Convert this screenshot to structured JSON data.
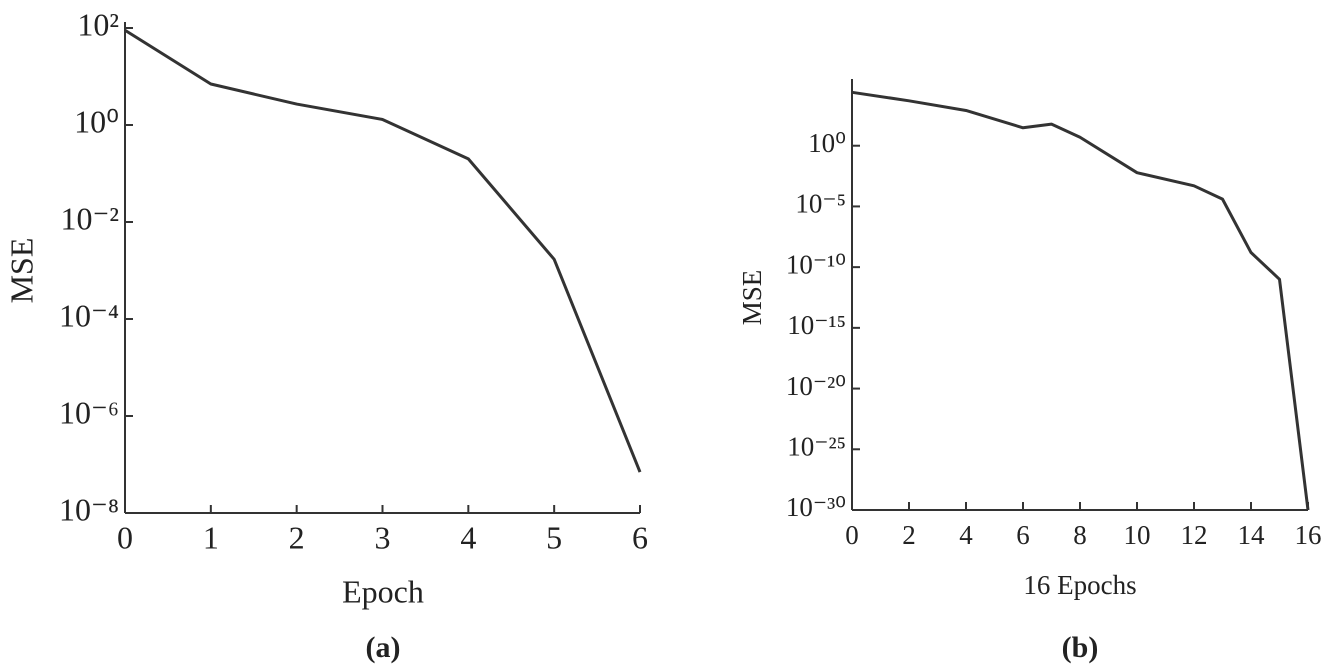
{
  "chart_data": [
    {
      "type": "line",
      "caption": "(a)",
      "xlabel": "Epoch",
      "ylabel": "MSE",
      "x": [
        0,
        1,
        2,
        3,
        4,
        5,
        6
      ],
      "values": [
        90,
        7,
        2.7,
        1.3,
        0.2,
        0.0017,
        7e-08
      ],
      "color": "#333333",
      "log_y": true,
      "xlim": [
        0,
        6
      ],
      "xticks": [
        0,
        1,
        2,
        3,
        4,
        5,
        6
      ],
      "ylim": [
        1e-08,
        100
      ],
      "yticks": [
        {
          "value": 1e-08,
          "label": "10⁻⁸"
        },
        {
          "value": 1e-06,
          "label": "10⁻⁶"
        },
        {
          "value": 0.0001,
          "label": "10⁻⁴"
        },
        {
          "value": 0.01,
          "label": "10⁻²"
        },
        {
          "value": 1,
          "label": "10⁰"
        },
        {
          "value": 100,
          "label": "10²"
        }
      ]
    },
    {
      "type": "line",
      "caption": "(b)",
      "xlabel": "16 Epochs",
      "ylabel": "MSE",
      "x": [
        0,
        2,
        4,
        6,
        7,
        8,
        10,
        12,
        13,
        14,
        15,
        16
      ],
      "values": [
        25000,
        5000,
        800,
        30,
        60,
        5,
        0.006,
        0.0005,
        4e-05,
        1.6e-09,
        1e-11,
        1e-30
      ],
      "color": "#333333",
      "log_y": true,
      "xlim": [
        0,
        16
      ],
      "xticks": [
        0,
        2,
        4,
        6,
        8,
        10,
        12,
        14,
        16
      ],
      "ylim": [
        1e-30,
        100000
      ],
      "yticks": [
        {
          "value": 1e-30,
          "label": "10⁻³⁰"
        },
        {
          "value": 1e-25,
          "label": "10⁻²⁵"
        },
        {
          "value": 1e-20,
          "label": "10⁻²⁰"
        },
        {
          "value": 1e-15,
          "label": "10⁻¹⁵"
        },
        {
          "value": 1e-10,
          "label": "10⁻¹⁰"
        },
        {
          "value": 1e-05,
          "label": "10⁻⁵"
        },
        {
          "value": 1,
          "label": "10⁰"
        }
      ]
    }
  ]
}
